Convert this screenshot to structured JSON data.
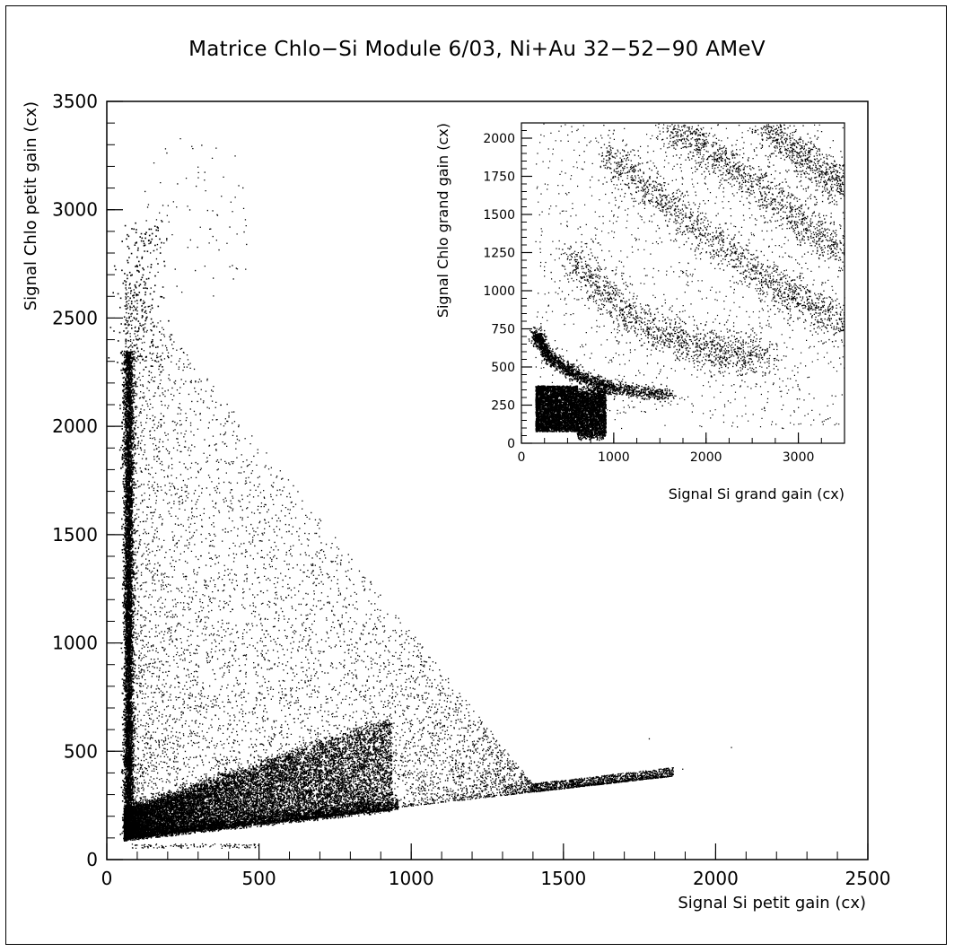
{
  "chart_data": [
    {
      "type": "scatter",
      "title": "Matrice Chlo−Si Module 6/03, Ni+Au 32−52−90 AMeV",
      "xlabel": "Signal Si petit gain (cx)",
      "ylabel": "Signal Chlo petit gain (cx)",
      "xlim": [
        0,
        2500
      ],
      "ylim": [
        0,
        3500
      ],
      "xticks": [
        "0",
        "500",
        "1000",
        "1500",
        "2000",
        "2500"
      ],
      "yticks": [
        "0",
        "500",
        "1000",
        "1500",
        "2000",
        "2500",
        "3000",
        "3500"
      ],
      "grid": false,
      "legend": "none",
      "marker_color": "#000000",
      "structures": [
        {
          "kind": "vertical-band",
          "x_range": [
            60,
            100
          ],
          "y_range": [
            100,
            2700
          ],
          "density": "very high"
        },
        {
          "kind": "dense-base",
          "x_range": [
            50,
            900
          ],
          "y_range": [
            80,
            400
          ],
          "density": "very high"
        },
        {
          "kind": "diffuse-triangle",
          "x_range": [
            60,
            1900
          ],
          "y_range": [
            100,
            3300
          ],
          "density": "decreasing with distance from origin"
        },
        {
          "kind": "lower-edge-line",
          "points": [
            [
              60,
              90
            ],
            [
              1000,
              240
            ],
            [
              1900,
              400
            ]
          ]
        }
      ]
    },
    {
      "type": "scatter",
      "title": "",
      "xlabel": "Signal Si grand gain (cx)",
      "ylabel": "Signal Chlo grand gain (cx)",
      "xlim": [
        0,
        3500
      ],
      "ylim": [
        0,
        2100
      ],
      "xticks": [
        "0",
        "1000",
        "2000",
        "3000"
      ],
      "yticks": [
        "0",
        "250",
        "500",
        "750",
        "1000",
        "1250",
        "1500",
        "1750",
        "2000"
      ],
      "grid": false,
      "legend": "none",
      "placement": "inset top-right",
      "marker_color": "#000000",
      "structures": [
        {
          "kind": "dense-block",
          "x_range": [
            150,
            900
          ],
          "y_range": [
            80,
            380
          ]
        },
        {
          "kind": "hyperbolic-line",
          "points": [
            [
              150,
              720
            ],
            [
              300,
              560
            ],
            [
              600,
              450
            ],
            [
              1000,
              360
            ],
            [
              1600,
              320
            ]
          ]
        },
        {
          "kind": "band",
          "points": [
            [
              500,
              1250
            ],
            [
              1200,
              800
            ],
            [
              2000,
              620
            ],
            [
              2700,
              560
            ]
          ]
        },
        {
          "kind": "band",
          "points": [
            [
              900,
              1900
            ],
            [
              1800,
              1450
            ],
            [
              2700,
              1050
            ],
            [
              3500,
              780
            ]
          ]
        },
        {
          "kind": "band",
          "points": [
            [
              1600,
              2100
            ],
            [
              2500,
              1700
            ],
            [
              3500,
              1250
            ]
          ]
        },
        {
          "kind": "band",
          "points": [
            [
              2600,
              2100
            ],
            [
              3500,
              1650
            ]
          ]
        }
      ]
    }
  ]
}
